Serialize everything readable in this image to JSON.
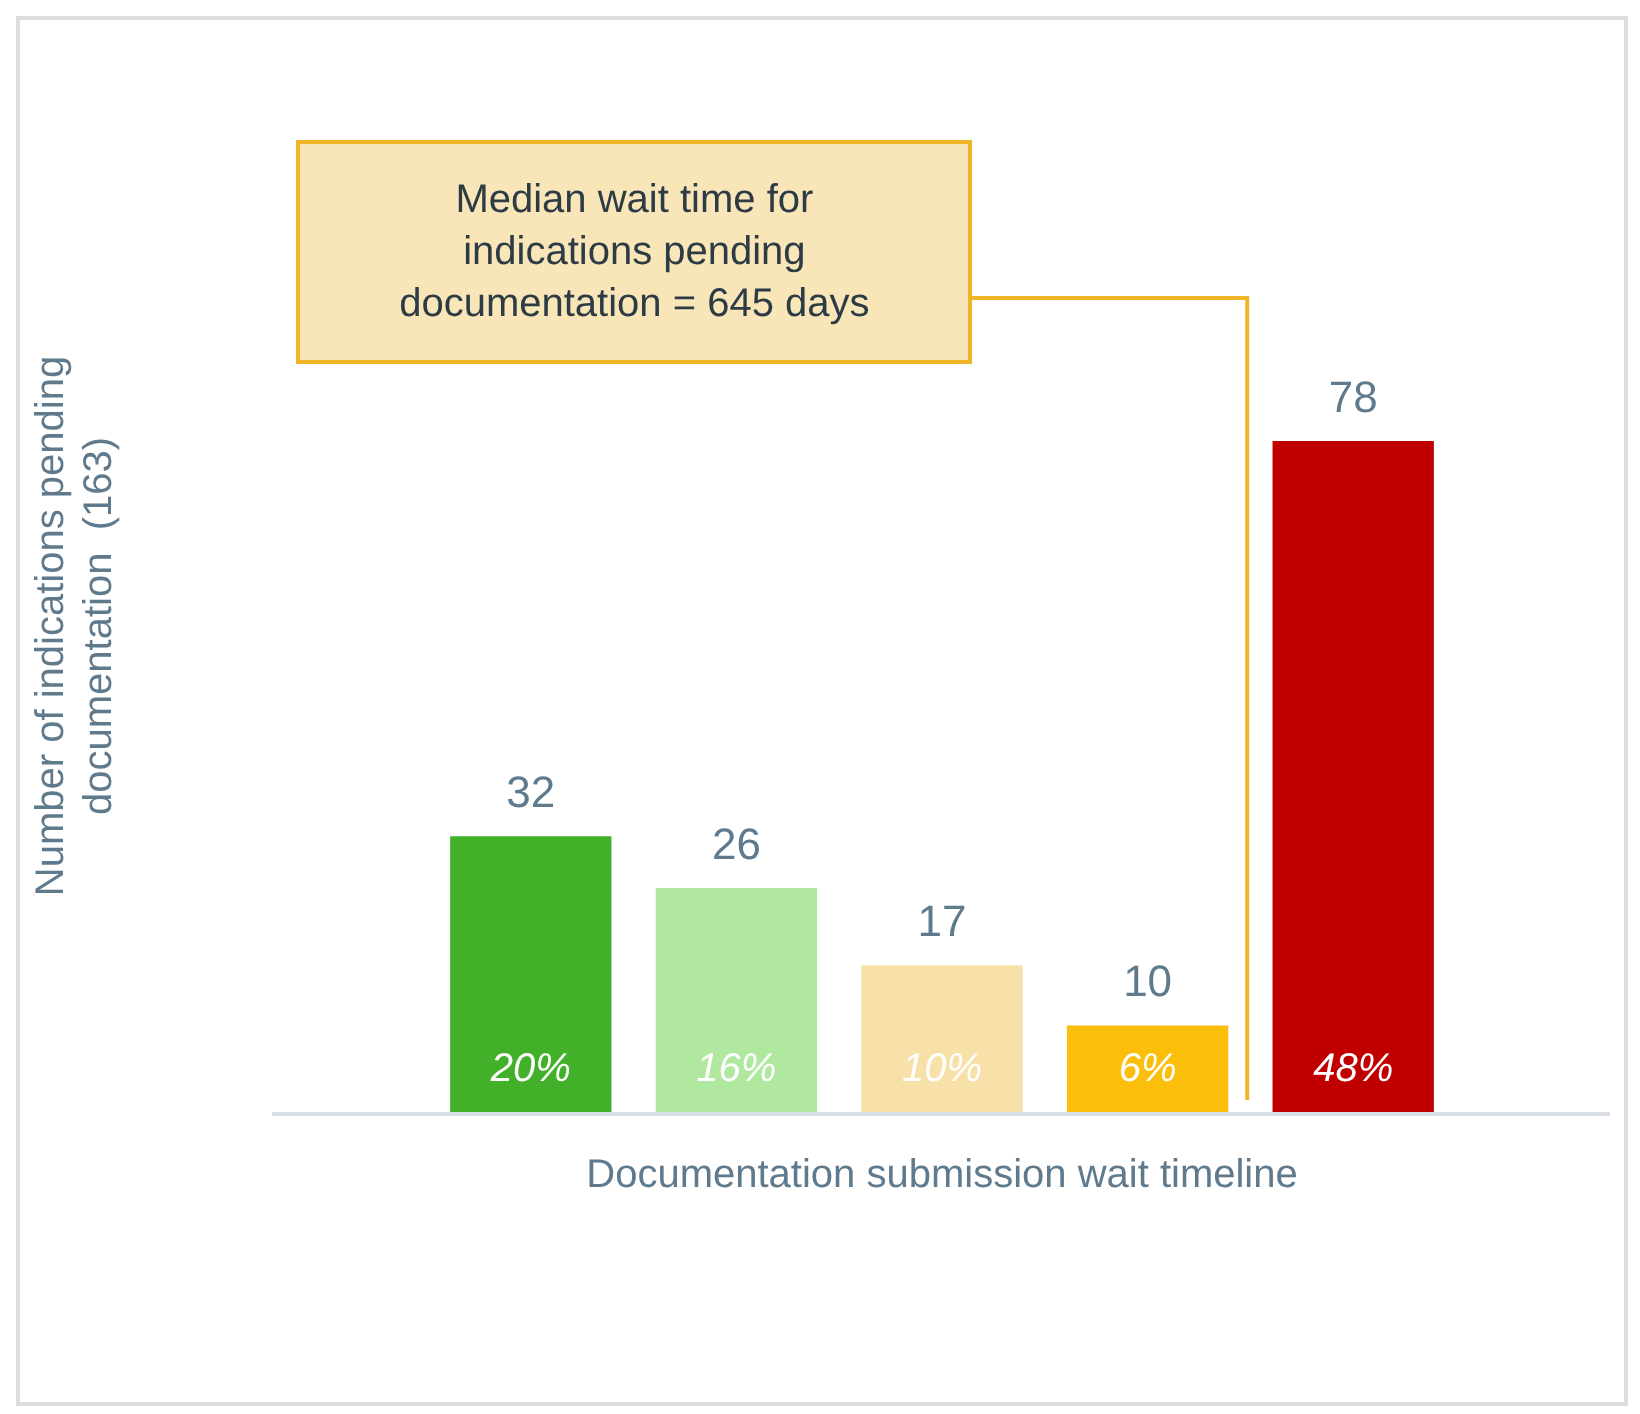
{
  "chart_data": {
    "type": "bar",
    "xlabel": "Documentation submission wait timeline",
    "ylabel": "Number of indications pending documentation  (163)",
    "categories": [
      null,
      null,
      null,
      null,
      null
    ],
    "values": [
      32,
      26,
      17,
      10,
      78
    ],
    "colors": [
      "#43b02a",
      "#b0e8a0",
      "#f8e1a8",
      "#fbbf0b",
      "#c00000"
    ],
    "data_labels": true,
    "tick_labels": false,
    "grid": false,
    "legend": false,
    "annotations": [
      "Median wait time for indications pending documentation = 645 days",
      "20%",
      "16%",
      "10%",
      "6%",
      "48%"
    ]
  }
}
